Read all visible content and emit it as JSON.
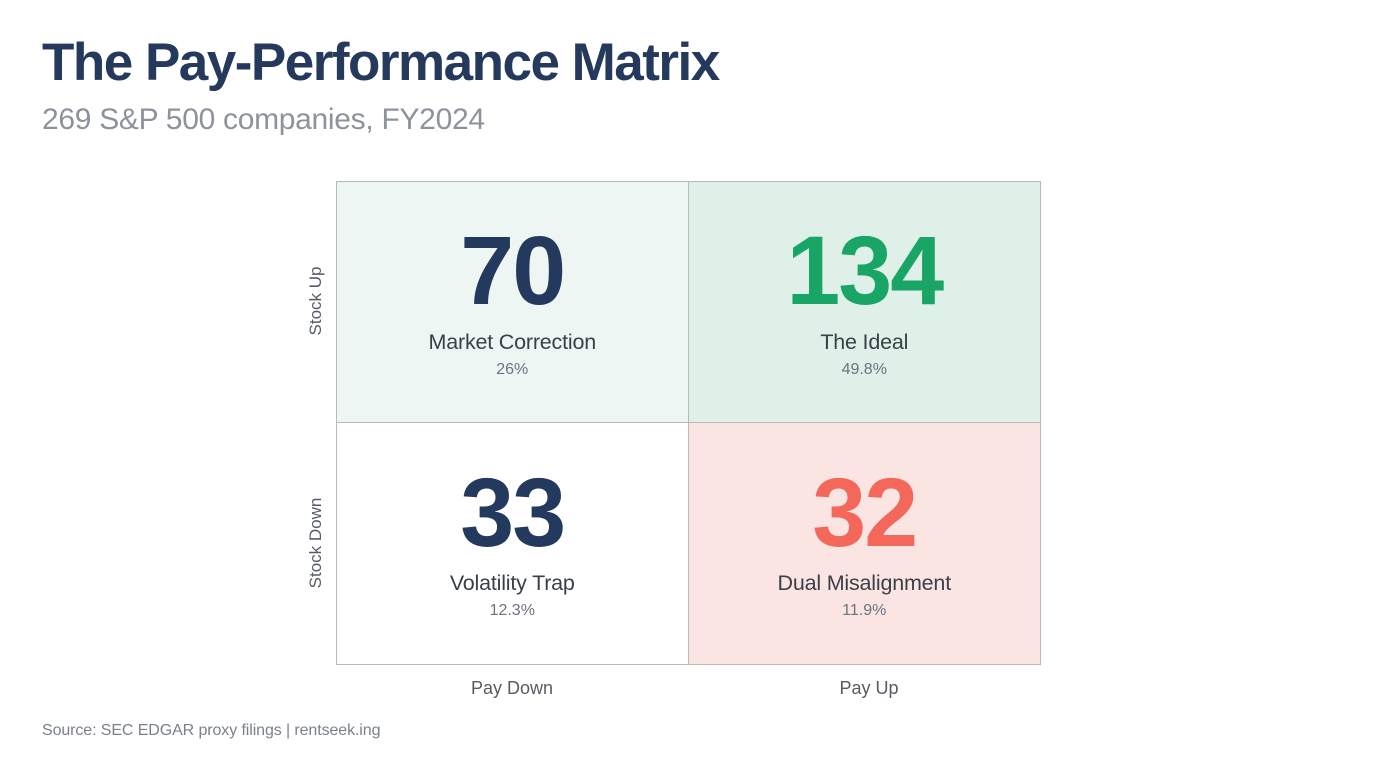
{
  "page": {
    "title": "The Pay-Performance Matrix",
    "subtitle": "269 S&P 500 companies, FY2024",
    "source": "Source: SEC EDGAR proxy filings | rentseek.ing"
  },
  "colors": {
    "title_navy": "#24395B",
    "value_navy": "#233A5E",
    "value_green": "#18A565",
    "value_red": "#F4685C",
    "quadrant_bg_mint": "#EDF6F2",
    "quadrant_bg_green": "#DEF0E7",
    "quadrant_bg_white": "#FFFFFF",
    "quadrant_bg_pink": "#FBE5E2",
    "grid_line": "#B5BBBB"
  },
  "chart_data": {
    "type": "heatmap",
    "title": "The Pay-Performance Matrix",
    "subtitle": "269 S&P 500 companies, FY2024",
    "total_companies": 269,
    "x_axis": {
      "left": "Pay Down",
      "right": "Pay Up"
    },
    "y_axis": {
      "top": "Stock Up",
      "bottom": "Stock Down"
    },
    "quadrants": [
      {
        "position": "top-left",
        "x": "Pay Down",
        "y": "Stock Up",
        "count": 70,
        "label": "Market Correction",
        "percent": "26%",
        "bg_color": "#EDF6F2",
        "count_color": "#233A5E"
      },
      {
        "position": "top-right",
        "x": "Pay Up",
        "y": "Stock Up",
        "count": 134,
        "label": "The Ideal",
        "percent": "49.8%",
        "bg_color": "#DEF0E7",
        "count_color": "#18A565"
      },
      {
        "position": "bottom-left",
        "x": "Pay Down",
        "y": "Stock Down",
        "count": 33,
        "label": "Volatility Trap",
        "percent": "12.3%",
        "bg_color": "#FFFFFF",
        "count_color": "#233A5E"
      },
      {
        "position": "bottom-right",
        "x": "Pay Up",
        "y": "Stock Down",
        "count": 32,
        "label": "Dual Misalignment",
        "percent": "11.9%",
        "bg_color": "#FBE5E2",
        "count_color": "#F4685C"
      }
    ],
    "source": "Source: SEC EDGAR proxy filings | rentseek.ing"
  }
}
